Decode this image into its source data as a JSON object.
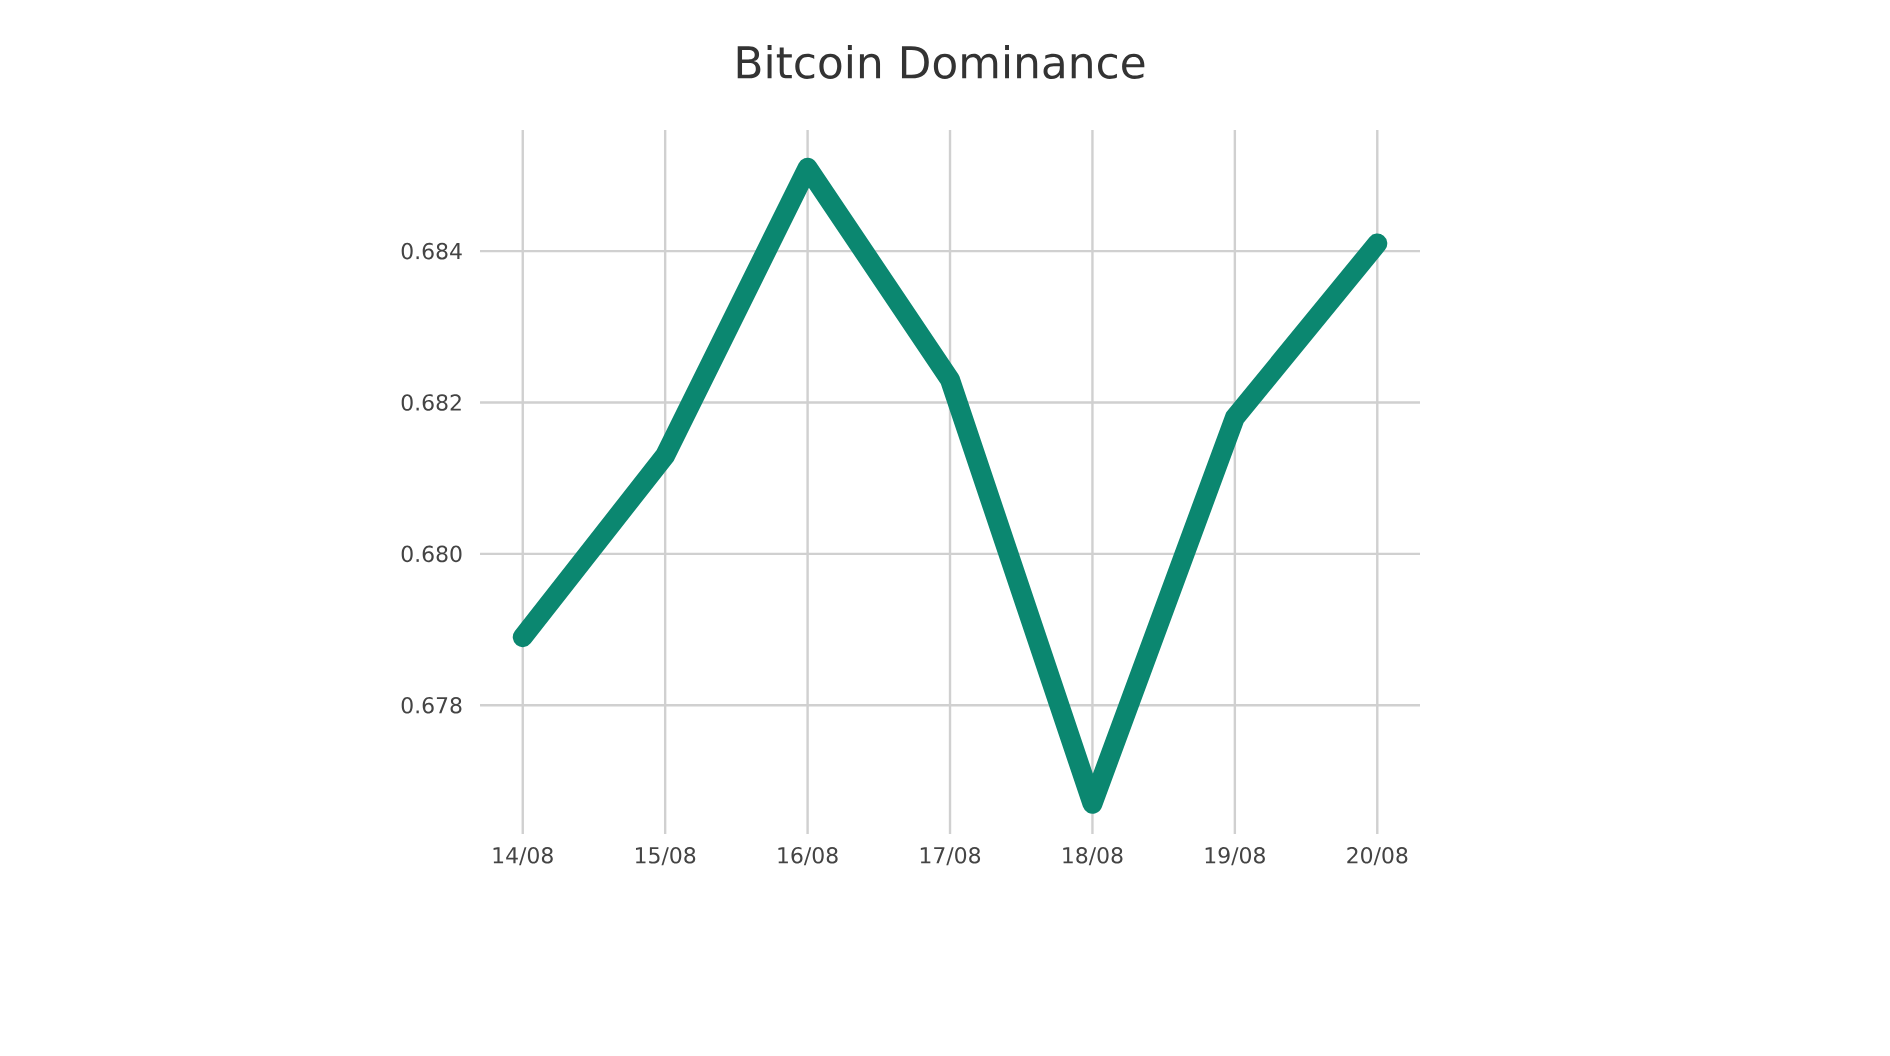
{
  "chart_data": {
    "type": "line",
    "title": "Bitcoin Dominance",
    "categories": [
      "14/08",
      "15/08",
      "16/08",
      "17/08",
      "18/08",
      "19/08",
      "20/08"
    ],
    "values": [
      0.6789,
      0.6813,
      0.6851,
      0.6823,
      0.6767,
      0.6818,
      0.6841
    ],
    "color": "#0b8770",
    "ylim": [
      0.6763,
      0.6856
    ],
    "yticks": [
      0.678,
      {
        "value": 0.68,
        "label": "0.680"
      },
      0.682,
      0.684
    ],
    "grid": true
  }
}
